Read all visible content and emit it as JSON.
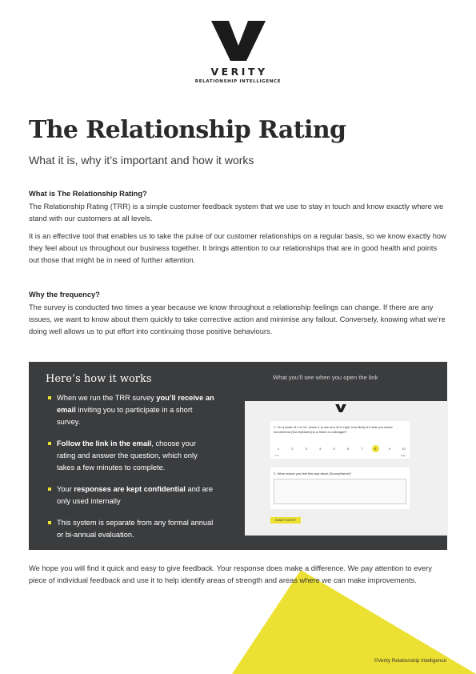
{
  "brand": {
    "name": "VERITY",
    "tagline": "RELATIONSHIP INTELLIGENCE",
    "accent_color": "#ece132",
    "panel_color": "#3b3c3e"
  },
  "header": {
    "title": "The Relationship Rating",
    "subtitle": "What it is, why it’s important and how it works"
  },
  "sections": [
    {
      "heading": "What is The Relationship Rating?",
      "paragraphs": [
        "The Relationship Rating (TRR) is a simple customer feedback system that we use to stay in touch and know exactly where we stand with our customers at all levels.",
        "It is an effective tool that enables us to take the pulse of our customer relationships on a regular basis, so we know exactly how they feel about us throughout our business together. It brings attention to our relationships that are in good health and points out those that might be in need of further attention."
      ]
    },
    {
      "heading": "Why the frequency?",
      "paragraphs": [
        "The survey is conducted two times a year because we know throughout a relationship feelings can change. If there are any issues, we want to know about them quickly to take corrective action and minimise any fallout. Conversely, knowing what we’re doing well allows us to put effort into continuing those positive behaviours."
      ]
    }
  ],
  "how_it_works": {
    "title": "Here’s how it works",
    "steps": [
      {
        "before": "When we run the TRR survey ",
        "bold": "you’ll receive an email",
        "after": " inviting you to participate in a short survey."
      },
      {
        "before": "",
        "bold": "Follow the link in the email",
        "after": ", choose your rating and answer the question, which only takes a few minutes to complete."
      },
      {
        "before": "Your ",
        "bold": "responses are kept confidential",
        "after": " and are only used internally"
      },
      {
        "before": "This system is separate from any formal annual or bi-annual evaluation.",
        "bold": "",
        "after": ""
      }
    ],
    "preview_caption": "What you’ll see when you open the link",
    "preview": {
      "q1": "1.   On a scale of 1 to 10, where 1 is low and 10 is high, how likely is it that you would recommend [SurveyName] to a friend or colleague?",
      "scale": [
        "1",
        "2",
        "3",
        "4",
        "5",
        "6",
        "7",
        "8",
        "9",
        "10"
      ],
      "selected": 8,
      "low_label": "Low",
      "high_label": "High",
      "q2": "2.   What makes you feel this way about [SurveyName]?",
      "submit_label": "SUBMIT SURVEY"
    }
  },
  "closing": "We hope you will find it quick and easy to give feedback. Your response does make a difference. We pay attention to every piece of individual feedback and use it to help identify areas of strength and areas where we can make improvements.",
  "copyright": "©Verity Relationship Intelligence"
}
